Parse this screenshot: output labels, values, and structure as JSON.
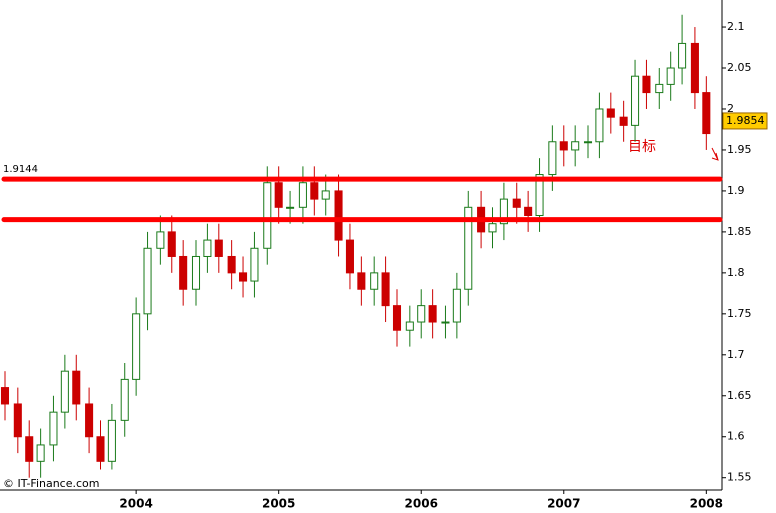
{
  "chart_data": {
    "type": "candlestick",
    "x": [
      2003.08,
      2003.17,
      2003.25,
      2003.33,
      2003.42,
      2003.5,
      2003.58,
      2003.67,
      2003.75,
      2003.83,
      2003.92,
      2004,
      2004.08,
      2004.17,
      2004.25,
      2004.33,
      2004.42,
      2004.5,
      2004.58,
      2004.67,
      2004.75,
      2004.83,
      2004.92,
      2005,
      2005.08,
      2005.17,
      2005.25,
      2005.33,
      2005.42,
      2005.5,
      2005.58,
      2005.67,
      2005.75,
      2005.83,
      2005.92,
      2006,
      2006.08,
      2006.17,
      2006.25,
      2006.33,
      2006.42,
      2006.5,
      2006.58,
      2006.67,
      2006.75,
      2006.83,
      2006.92,
      2007,
      2007.08,
      2007.17,
      2007.25,
      2007.33,
      2007.42,
      2007.5,
      2007.58,
      2007.67,
      2007.75,
      2007.83,
      2007.92,
      2008
    ],
    "open": [
      1.66,
      1.64,
      1.6,
      1.57,
      1.59,
      1.63,
      1.68,
      1.64,
      1.6,
      1.57,
      1.62,
      1.67,
      1.75,
      1.83,
      1.85,
      1.82,
      1.78,
      1.82,
      1.84,
      1.82,
      1.8,
      1.79,
      1.83,
      1.91,
      1.88,
      1.88,
      1.91,
      1.89,
      1.9,
      1.84,
      1.8,
      1.78,
      1.8,
      1.76,
      1.73,
      1.74,
      1.76,
      1.74,
      1.74,
      1.78,
      1.88,
      1.85,
      1.86,
      1.89,
      1.88,
      1.87,
      1.92,
      1.96,
      1.95,
      1.96,
      1.96,
      2.0,
      1.99,
      1.98,
      2.04,
      2.02,
      2.03,
      2.05,
      2.08,
      2.02
    ],
    "high": [
      1.68,
      1.66,
      1.62,
      1.61,
      1.65,
      1.7,
      1.7,
      1.66,
      1.62,
      1.64,
      1.69,
      1.77,
      1.85,
      1.87,
      1.87,
      1.84,
      1.84,
      1.86,
      1.86,
      1.84,
      1.82,
      1.85,
      1.93,
      1.93,
      1.9,
      1.93,
      1.93,
      1.92,
      1.92,
      1.86,
      1.82,
      1.82,
      1.82,
      1.78,
      1.76,
      1.78,
      1.78,
      1.76,
      1.8,
      1.9,
      1.9,
      1.88,
      1.91,
      1.91,
      1.9,
      1.94,
      1.98,
      1.98,
      1.98,
      1.98,
      2.02,
      2.02,
      2.01,
      2.06,
      2.06,
      2.05,
      2.07,
      2.115,
      2.1,
      2.04
    ],
    "low": [
      1.62,
      1.58,
      1.55,
      1.55,
      1.57,
      1.61,
      1.62,
      1.58,
      1.56,
      1.56,
      1.6,
      1.65,
      1.73,
      1.81,
      1.8,
      1.76,
      1.76,
      1.8,
      1.8,
      1.78,
      1.77,
      1.77,
      1.81,
      1.86,
      1.86,
      1.86,
      1.87,
      1.87,
      1.82,
      1.78,
      1.76,
      1.76,
      1.74,
      1.71,
      1.71,
      1.72,
      1.72,
      1.72,
      1.72,
      1.76,
      1.83,
      1.83,
      1.84,
      1.86,
      1.85,
      1.85,
      1.9,
      1.93,
      1.93,
      1.94,
      1.94,
      1.97,
      1.96,
      1.96,
      2.0,
      2.0,
      2.01,
      2.03,
      2.0,
      1.95
    ],
    "close": [
      1.64,
      1.6,
      1.57,
      1.59,
      1.63,
      1.68,
      1.64,
      1.6,
      1.57,
      1.62,
      1.67,
      1.75,
      1.83,
      1.85,
      1.82,
      1.78,
      1.82,
      1.84,
      1.82,
      1.8,
      1.79,
      1.83,
      1.91,
      1.88,
      1.88,
      1.91,
      1.89,
      1.9,
      1.84,
      1.8,
      1.78,
      1.8,
      1.76,
      1.73,
      1.74,
      1.76,
      1.74,
      1.74,
      1.78,
      1.88,
      1.85,
      1.86,
      1.89,
      1.88,
      1.87,
      1.92,
      1.96,
      1.95,
      1.96,
      1.96,
      2.0,
      1.99,
      1.98,
      2.04,
      2.02,
      2.03,
      2.05,
      2.08,
      2.02,
      1.97
    ],
    "up_color": "#1a7a1a",
    "down_color": "#cc0000",
    "xlim": [
      2003.045,
      2008.11
    ],
    "xticks": [
      2004,
      2005,
      2006,
      2007,
      2008
    ],
    "ylim": [
      1.535,
      2.133
    ],
    "yticks": [
      1.55,
      1.6,
      1.65,
      1.7,
      1.75,
      1.8,
      1.85,
      1.9,
      1.95,
      2,
      2.05,
      2.1
    ],
    "hlines": [
      1.9144,
      1.865
    ],
    "hline_color": "#ff0000",
    "last_price": 1.9854,
    "annotation": "目标",
    "watermark": "© IT-Finance.com"
  }
}
